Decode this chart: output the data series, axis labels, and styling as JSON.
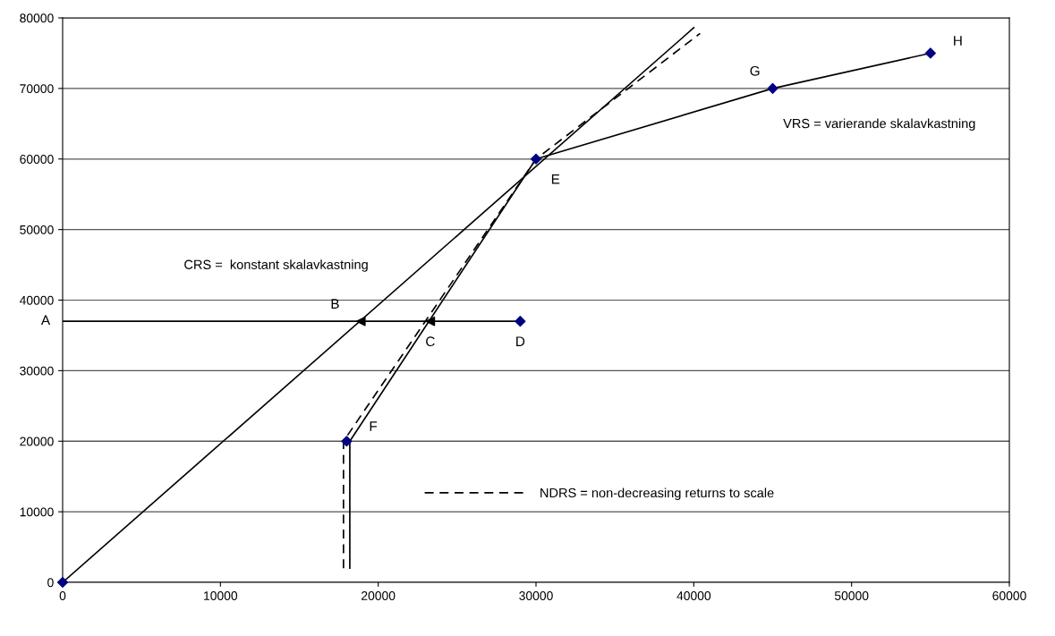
{
  "chart_data": {
    "type": "line",
    "xlim": [
      0,
      60000
    ],
    "xticks": [
      0,
      10000,
      20000,
      30000,
      40000,
      50000,
      60000
    ],
    "ylim": [
      0,
      80000
    ],
    "yticks": [
      0,
      10000,
      20000,
      30000,
      40000,
      50000,
      60000,
      70000,
      80000
    ],
    "grid": "y",
    "legend": "bottom",
    "line_style": "solid",
    "marker": "none",
    "series": [
      {
        "x": [
          0,
          40000
        ],
        "values": [
          0,
          78600
        ],
        "color": "#000000"
      },
      {
        "x": [
          18200,
          18200,
          30000,
          45000,
          55000
        ],
        "values": [
          2000,
          20000,
          60000,
          70000,
          75000
        ],
        "color": "#000000"
      },
      {
        "name": "NDRS = non-decreasing returns to scale",
        "x": [
          17800,
          17800,
          30000,
          40400
        ],
        "values": [
          2000,
          20000,
          60000,
          77800
        ],
        "color": "#000000",
        "line_style": "dashed"
      },
      {
        "x": [
          0,
          29000
        ],
        "values": [
          37000,
          37000
        ],
        "color": "#000000"
      },
      {
        "type": "scatter",
        "marker": "triangle",
        "x": [
          18900,
          23300
        ],
        "values": [
          37000,
          37000
        ],
        "color": "#000000"
      },
      {
        "type": "scatter",
        "marker": "diamond",
        "x": [
          0,
          18000,
          30000,
          45000,
          55000,
          29000
        ],
        "values": [
          0,
          20000,
          60000,
          70000,
          75000,
          37000
        ],
        "color": "#000080"
      }
    ],
    "annotations": [
      {
        "text": "A",
        "x": 0,
        "y": 37000
      },
      {
        "text": "B",
        "x": 18500,
        "y": 37000
      },
      {
        "text": "C",
        "x": 23300,
        "y": 37000
      },
      {
        "text": "D",
        "x": 29000,
        "y": 37000
      },
      {
        "text": "E",
        "x": 30000,
        "y": 60000
      },
      {
        "text": "F",
        "x": 18000,
        "y": 20000
      },
      {
        "text": "G",
        "x": 45000,
        "y": 70000
      },
      {
        "text": "H",
        "x": 55000,
        "y": 75000
      },
      "CRS =  konstant skalavkastning",
      "VRS = varierande skalavkastning"
    ]
  }
}
